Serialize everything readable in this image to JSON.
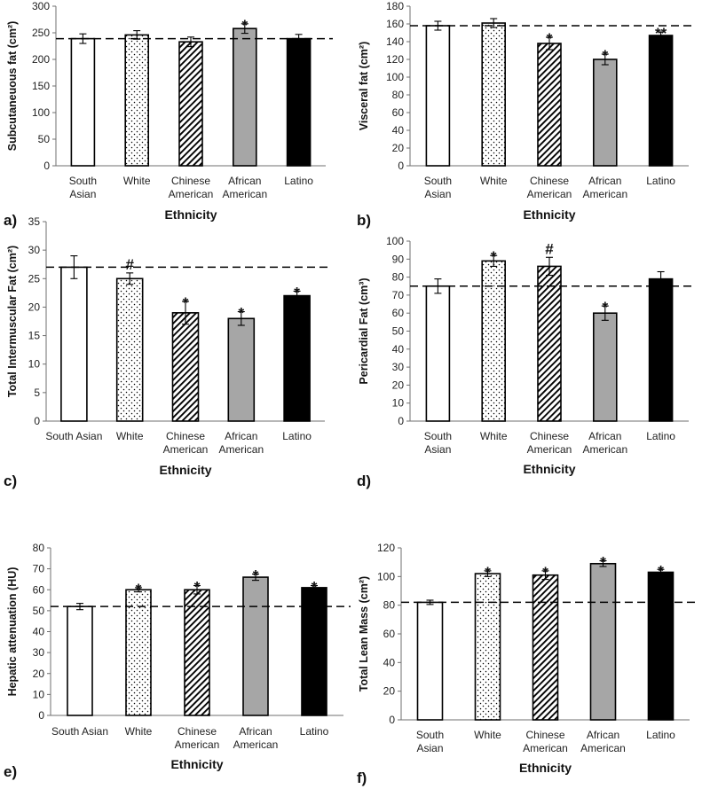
{
  "figure": {
    "colors": {
      "axis": "#6f6f6f",
      "bar_outline": "#000000",
      "gray_fill": "#a6a6a6",
      "black_fill": "#000000"
    },
    "fill_styles": [
      "white",
      "dots",
      "diagonal-hatch",
      "gray",
      "black"
    ]
  },
  "chart_data": [
    {
      "type": "bar",
      "panel_label": "a)",
      "categories": [
        [
          "South",
          "Asian"
        ],
        [
          "White"
        ],
        [
          "Chinese",
          "American"
        ],
        [
          "African",
          "American"
        ],
        [
          "Latino"
        ]
      ],
      "values": [
        239,
        246,
        233,
        258,
        239
      ],
      "errors": [
        9,
        8,
        9,
        9,
        8
      ],
      "significance": [
        "",
        "",
        "",
        "*",
        ""
      ],
      "reference_line": 239,
      "ylim": [
        0,
        300
      ],
      "yticks": [
        0,
        50,
        100,
        150,
        200,
        250,
        300
      ],
      "ylabel": "Subcutaneuous fat (cm²)",
      "xlabel": "Ethnicity"
    },
    {
      "type": "bar",
      "panel_label": "b)",
      "categories": [
        [
          "South",
          "Asian"
        ],
        [
          "White"
        ],
        [
          "Chinese",
          "American"
        ],
        [
          "African",
          "American"
        ],
        [
          "Latino"
        ]
      ],
      "values": [
        158,
        161,
        138,
        120,
        147
      ],
      "errors": [
        5,
        5,
        7,
        6,
        4
      ],
      "significance": [
        "",
        "",
        "*",
        "*",
        "**"
      ],
      "reference_line": 158,
      "ylim": [
        0,
        180
      ],
      "yticks": [
        0,
        20,
        40,
        60,
        80,
        100,
        120,
        140,
        160,
        180
      ],
      "ylabel": "Visceral fat (cm²)",
      "xlabel": "Ethnicity"
    },
    {
      "type": "bar",
      "panel_label": "c)",
      "categories": [
        [
          "South Asian"
        ],
        [
          "White"
        ],
        [
          "Chinese",
          "American"
        ],
        [
          "African",
          "American"
        ],
        [
          "Latino"
        ]
      ],
      "values": [
        27,
        25,
        19,
        18,
        22
      ],
      "errors": [
        2,
        1,
        2,
        1.2,
        0.8
      ],
      "significance": [
        "",
        "#",
        "*",
        "*",
        "*"
      ],
      "reference_line": 27,
      "ylim": [
        0,
        35
      ],
      "yticks": [
        0,
        5,
        10,
        15,
        20,
        25,
        30,
        35
      ],
      "ylabel": "Total Intermuscular Fat (cm²)",
      "xlabel": "Ethnicity"
    },
    {
      "type": "bar",
      "panel_label": "d)",
      "categories": [
        [
          "South",
          "Asian"
        ],
        [
          "White"
        ],
        [
          "Chinese",
          "American"
        ],
        [
          "African",
          "American"
        ],
        [
          "Latino"
        ]
      ],
      "values": [
        75,
        89,
        86,
        60,
        79
      ],
      "errors": [
        4,
        3,
        5,
        4,
        4
      ],
      "significance": [
        "",
        "*",
        "#",
        "*",
        ""
      ],
      "reference_line": 75,
      "ylim": [
        0,
        100
      ],
      "yticks": [
        0,
        10,
        20,
        30,
        40,
        50,
        60,
        70,
        80,
        90,
        100
      ],
      "ylabel": "Pericardial Fat (cm³)",
      "xlabel": "Ethnicity"
    },
    {
      "type": "bar",
      "panel_label": "e)",
      "categories": [
        [
          "South Asian"
        ],
        [
          "White"
        ],
        [
          "Chinese",
          "American"
        ],
        [
          "African",
          "American"
        ],
        [
          "Latino"
        ]
      ],
      "values": [
        52,
        60,
        60,
        66,
        61
      ],
      "errors": [
        1.5,
        1,
        2,
        1.5,
        1
      ],
      "significance": [
        "",
        "*",
        "*",
        "*",
        "*"
      ],
      "reference_line": 52,
      "ylim": [
        0,
        80
      ],
      "yticks": [
        0,
        10,
        20,
        30,
        40,
        50,
        60,
        70,
        80
      ],
      "ylabel": "Hepatic attenuation (HU)",
      "xlabel": "Ethnicity"
    },
    {
      "type": "bar",
      "panel_label": "f)",
      "categories": [
        [
          "South",
          "Asian"
        ],
        [
          "White"
        ],
        [
          "Chinese",
          "American"
        ],
        [
          "African",
          "American"
        ],
        [
          "Latino"
        ]
      ],
      "values": [
        82,
        102,
        101,
        109,
        103
      ],
      "errors": [
        1.5,
        2,
        3,
        2,
        2
      ],
      "significance": [
        "",
        "*",
        "*",
        "*",
        "*"
      ],
      "reference_line": 82,
      "ylim": [
        0,
        120
      ],
      "yticks": [
        0,
        20,
        40,
        60,
        80,
        100,
        120
      ],
      "ylabel": "Total Lean Mass (cm²)",
      "xlabel": "Ethnicity"
    }
  ]
}
